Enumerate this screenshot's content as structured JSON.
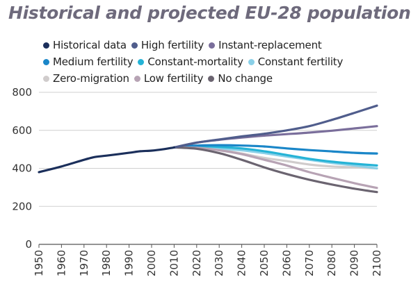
{
  "chart_data": {
    "type": "line",
    "title": "Historical and projected EU-28 population",
    "xlabel": "",
    "ylabel": "",
    "xlim": [
      1950,
      2100
    ],
    "ylim": [
      0,
      800
    ],
    "y_ticks": [
      0,
      200,
      400,
      600,
      800
    ],
    "x_ticks": [
      1950,
      1960,
      1970,
      1980,
      1990,
      2000,
      2010,
      2020,
      2030,
      2040,
      2050,
      2060,
      2070,
      2080,
      2090,
      2100
    ],
    "grid": "horizontal",
    "legend_position": "top",
    "series": [
      {
        "name": "Historical data",
        "color": "#1b2f5b",
        "x": [
          1950,
          1960,
          1970,
          1975,
          1980,
          1990,
          1995,
          2000,
          2005,
          2010
        ],
        "y": [
          380,
          410,
          445,
          460,
          467,
          482,
          490,
          493,
          500,
          510
        ]
      },
      {
        "name": "High fertility",
        "color": "#505d8c",
        "x": [
          2010,
          2020,
          2030,
          2040,
          2050,
          2060,
          2070,
          2080,
          2090,
          2100
        ],
        "y": [
          510,
          535,
          552,
          568,
          582,
          600,
          622,
          655,
          692,
          730
        ]
      },
      {
        "name": "Instant-replacement",
        "color": "#7a6e9b",
        "x": [
          2010,
          2020,
          2030,
          2040,
          2050,
          2060,
          2070,
          2080,
          2090,
          2100
        ],
        "y": [
          510,
          535,
          550,
          562,
          572,
          580,
          588,
          598,
          610,
          622
        ]
      },
      {
        "name": "Medium fertility",
        "color": "#1a86c8",
        "x": [
          2010,
          2020,
          2030,
          2040,
          2050,
          2060,
          2070,
          2080,
          2090,
          2100
        ],
        "y": [
          510,
          520,
          522,
          520,
          515,
          505,
          496,
          489,
          482,
          478
        ]
      },
      {
        "name": "Constant-mortality",
        "color": "#25b3d6",
        "x": [
          2010,
          2020,
          2030,
          2040,
          2050,
          2060,
          2070,
          2080,
          2090,
          2100
        ],
        "y": [
          510,
          517,
          513,
          505,
          490,
          470,
          450,
          435,
          424,
          415
        ]
      },
      {
        "name": "Constant fertility",
        "color": "#8ad0e8",
        "x": [
          2010,
          2020,
          2030,
          2040,
          2050,
          2060,
          2070,
          2080,
          2090,
          2100
        ],
        "y": [
          510,
          512,
          505,
          495,
          480,
          462,
          445,
          428,
          415,
          400
        ]
      },
      {
        "name": "Zero-migration",
        "color": "#d0cccc",
        "x": [
          2010,
          2020,
          2030,
          2040,
          2050,
          2060,
          2070,
          2080,
          2090,
          2100
        ],
        "y": [
          510,
          508,
          498,
          478,
          455,
          438,
          420,
          410,
          405,
          400
        ]
      },
      {
        "name": "Low fertility",
        "color": "#b7a3b4",
        "x": [
          2010,
          2020,
          2030,
          2040,
          2050,
          2060,
          2070,
          2080,
          2090,
          2100
        ],
        "y": [
          510,
          508,
          495,
          475,
          445,
          415,
          380,
          350,
          322,
          297
        ]
      },
      {
        "name": "No change",
        "color": "#6b6470",
        "x": [
          2010,
          2020,
          2030,
          2040,
          2050,
          2060,
          2070,
          2080,
          2090,
          2100
        ],
        "y": [
          510,
          503,
          480,
          445,
          405,
          370,
          340,
          315,
          293,
          275
        ]
      }
    ]
  }
}
